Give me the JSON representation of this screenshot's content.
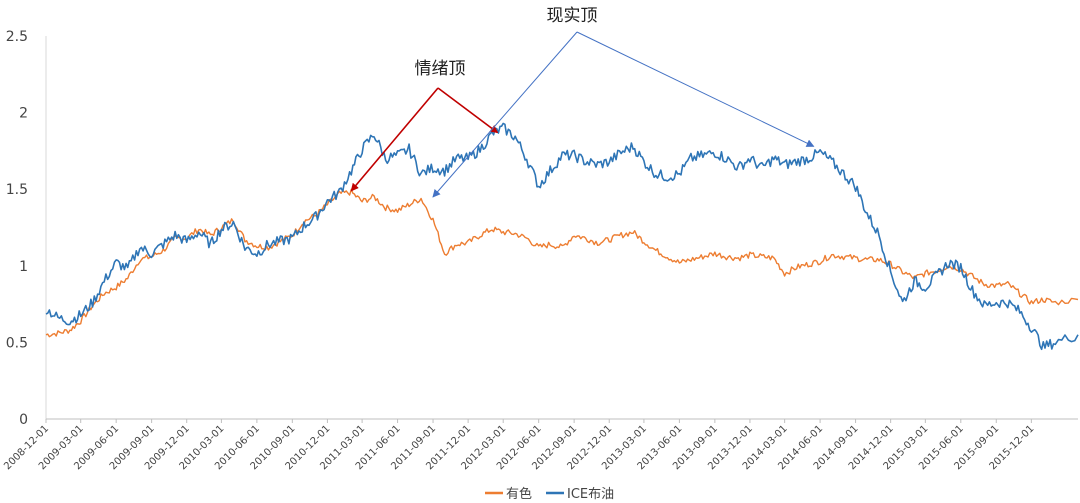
{
  "chart_data": {
    "type": "line",
    "title": "",
    "xlabel": "",
    "ylabel": "",
    "ylim": [
      0,
      2.5
    ],
    "yticks": [
      "0",
      "0.5",
      "1",
      "1.5",
      "2",
      "2.5"
    ],
    "x_start": "2008-12-01",
    "x_end": "2016-03-31",
    "grid": false,
    "legend_position": "bottom",
    "categories": [
      "2008-12-01",
      "2009-03-01",
      "2009-06-01",
      "2009-09-01",
      "2009-12-01",
      "2010-03-01",
      "2010-06-01",
      "2010-09-01",
      "2010-12-01",
      "2011-03-01",
      "2011-06-01",
      "2011-09-01",
      "2011-12-01",
      "2012-03-01",
      "2012-06-01",
      "2012-09-01",
      "2012-12-01",
      "2013-03-01",
      "2013-06-01",
      "2013-09-01",
      "2013-12-01",
      "2014-03-01",
      "2014-06-01",
      "2014-09-01",
      "2014-12-01",
      "2015-03-01",
      "2015-06-01",
      "2015-09-01",
      "2015-12-01"
    ],
    "series": [
      {
        "name": "有色",
        "color": "#ED7D31",
        "points": [
          [
            "2008-12-01",
            0.55
          ],
          [
            "2009-01-01",
            0.56
          ],
          [
            "2009-02-01",
            0.58
          ],
          [
            "2009-03-01",
            0.64
          ],
          [
            "2009-04-01",
            0.74
          ],
          [
            "2009-05-01",
            0.82
          ],
          [
            "2009-06-01",
            0.86
          ],
          [
            "2009-07-01",
            0.92
          ],
          [
            "2009-08-01",
            1.04
          ],
          [
            "2009-09-01",
            1.06
          ],
          [
            "2009-10-01",
            1.1
          ],
          [
            "2009-11-01",
            1.18
          ],
          [
            "2009-12-01",
            1.18
          ],
          [
            "2010-01-01",
            1.24
          ],
          [
            "2010-02-01",
            1.2
          ],
          [
            "2010-03-01",
            1.25
          ],
          [
            "2010-04-01",
            1.3
          ],
          [
            "2010-05-01",
            1.17
          ],
          [
            "2010-06-01",
            1.13
          ],
          [
            "2010-07-01",
            1.12
          ],
          [
            "2010-08-01",
            1.16
          ],
          [
            "2010-09-01",
            1.2
          ],
          [
            "2010-10-01",
            1.29
          ],
          [
            "2010-11-01",
            1.33
          ],
          [
            "2010-12-01",
            1.4
          ],
          [
            "2011-01-01",
            1.47
          ],
          [
            "2011-02-01",
            1.48
          ],
          [
            "2011-03-01",
            1.42
          ],
          [
            "2011-04-01",
            1.45
          ],
          [
            "2011-05-01",
            1.38
          ],
          [
            "2011-06-01",
            1.36
          ],
          [
            "2011-07-01",
            1.4
          ],
          [
            "2011-08-01",
            1.44
          ],
          [
            "2011-09-01",
            1.3
          ],
          [
            "2011-10-01",
            1.08
          ],
          [
            "2011-11-01",
            1.14
          ],
          [
            "2011-12-01",
            1.15
          ],
          [
            "2012-01-01",
            1.2
          ],
          [
            "2012-02-01",
            1.24
          ],
          [
            "2012-03-01",
            1.22
          ],
          [
            "2012-04-01",
            1.21
          ],
          [
            "2012-05-01",
            1.18
          ],
          [
            "2012-06-01",
            1.12
          ],
          [
            "2012-07-01",
            1.14
          ],
          [
            "2012-08-01",
            1.12
          ],
          [
            "2012-09-01",
            1.2
          ],
          [
            "2012-10-01",
            1.18
          ],
          [
            "2012-11-01",
            1.15
          ],
          [
            "2012-12-01",
            1.17
          ],
          [
            "2013-01-01",
            1.2
          ],
          [
            "2013-02-01",
            1.22
          ],
          [
            "2013-03-01",
            1.16
          ],
          [
            "2013-04-01",
            1.1
          ],
          [
            "2013-05-01",
            1.06
          ],
          [
            "2013-06-01",
            1.02
          ],
          [
            "2013-07-01",
            1.04
          ],
          [
            "2013-08-01",
            1.06
          ],
          [
            "2013-09-01",
            1.08
          ],
          [
            "2013-10-01",
            1.06
          ],
          [
            "2013-11-01",
            1.05
          ],
          [
            "2013-12-01",
            1.07
          ],
          [
            "2014-01-01",
            1.06
          ],
          [
            "2014-02-01",
            1.05
          ],
          [
            "2014-03-01",
            0.95
          ],
          [
            "2014-04-01",
            0.99
          ],
          [
            "2014-05-01",
            1.01
          ],
          [
            "2014-06-01",
            1.03
          ],
          [
            "2014-07-01",
            1.07
          ],
          [
            "2014-08-01",
            1.06
          ],
          [
            "2014-09-01",
            1.05
          ],
          [
            "2014-10-01",
            1.04
          ],
          [
            "2014-11-01",
            1.04
          ],
          [
            "2014-12-01",
            1.01
          ],
          [
            "2015-01-01",
            0.96
          ],
          [
            "2015-02-01",
            0.92
          ],
          [
            "2015-03-01",
            0.95
          ],
          [
            "2015-04-01",
            0.97
          ],
          [
            "2015-05-01",
            1.0
          ],
          [
            "2015-06-01",
            0.98
          ],
          [
            "2015-07-01",
            0.93
          ],
          [
            "2015-08-01",
            0.88
          ],
          [
            "2015-09-01",
            0.87
          ],
          [
            "2015-10-01",
            0.88
          ],
          [
            "2015-11-01",
            0.82
          ],
          [
            "2015-12-01",
            0.76
          ],
          [
            "2016-01-01",
            0.78
          ],
          [
            "2016-02-01",
            0.76
          ],
          [
            "2016-03-31",
            0.78
          ]
        ]
      },
      {
        "name": "ICE布油",
        "color": "#2E75B6",
        "points": [
          [
            "2008-12-01",
            0.72
          ],
          [
            "2009-01-01",
            0.66
          ],
          [
            "2009-02-01",
            0.64
          ],
          [
            "2009-03-01",
            0.68
          ],
          [
            "2009-04-01",
            0.76
          ],
          [
            "2009-05-01",
            0.9
          ],
          [
            "2009-06-01",
            1.02
          ],
          [
            "2009-07-01",
            0.98
          ],
          [
            "2009-08-01",
            1.12
          ],
          [
            "2009-09-01",
            1.08
          ],
          [
            "2009-10-01",
            1.14
          ],
          [
            "2009-11-01",
            1.2
          ],
          [
            "2009-12-01",
            1.16
          ],
          [
            "2010-01-01",
            1.22
          ],
          [
            "2010-02-01",
            1.14
          ],
          [
            "2010-03-01",
            1.24
          ],
          [
            "2010-04-01",
            1.28
          ],
          [
            "2010-05-01",
            1.12
          ],
          [
            "2010-06-01",
            1.08
          ],
          [
            "2010-07-01",
            1.14
          ],
          [
            "2010-08-01",
            1.16
          ],
          [
            "2010-09-01",
            1.18
          ],
          [
            "2010-10-01",
            1.26
          ],
          [
            "2010-11-01",
            1.32
          ],
          [
            "2010-12-01",
            1.42
          ],
          [
            "2011-01-01",
            1.48
          ],
          [
            "2011-02-01",
            1.62
          ],
          [
            "2011-03-01",
            1.76
          ],
          [
            "2011-04-01",
            1.86
          ],
          [
            "2011-05-01",
            1.7
          ],
          [
            "2011-06-01",
            1.72
          ],
          [
            "2011-07-01",
            1.76
          ],
          [
            "2011-08-01",
            1.6
          ],
          [
            "2011-09-01",
            1.64
          ],
          [
            "2011-10-01",
            1.62
          ],
          [
            "2011-11-01",
            1.7
          ],
          [
            "2011-12-01",
            1.7
          ],
          [
            "2012-01-01",
            1.76
          ],
          [
            "2012-02-01",
            1.86
          ],
          [
            "2012-03-01",
            1.9
          ],
          [
            "2012-04-01",
            1.84
          ],
          [
            "2012-05-01",
            1.7
          ],
          [
            "2012-06-01",
            1.52
          ],
          [
            "2012-07-01",
            1.62
          ],
          [
            "2012-08-01",
            1.72
          ],
          [
            "2012-09-01",
            1.72
          ],
          [
            "2012-10-01",
            1.68
          ],
          [
            "2012-11-01",
            1.66
          ],
          [
            "2012-12-01",
            1.68
          ],
          [
            "2013-01-01",
            1.74
          ],
          [
            "2013-02-01",
            1.78
          ],
          [
            "2013-03-01",
            1.68
          ],
          [
            "2013-04-01",
            1.6
          ],
          [
            "2013-05-01",
            1.58
          ],
          [
            "2013-06-01",
            1.6
          ],
          [
            "2013-07-01",
            1.7
          ],
          [
            "2013-08-01",
            1.72
          ],
          [
            "2013-09-01",
            1.74
          ],
          [
            "2013-10-01",
            1.7
          ],
          [
            "2013-11-01",
            1.64
          ],
          [
            "2013-12-01",
            1.7
          ],
          [
            "2014-01-01",
            1.64
          ],
          [
            "2014-02-01",
            1.7
          ],
          [
            "2014-03-01",
            1.66
          ],
          [
            "2014-04-01",
            1.68
          ],
          [
            "2014-05-01",
            1.7
          ],
          [
            "2014-06-01",
            1.74
          ],
          [
            "2014-07-01",
            1.68
          ],
          [
            "2014-08-01",
            1.6
          ],
          [
            "2014-09-01",
            1.52
          ],
          [
            "2014-10-01",
            1.34
          ],
          [
            "2014-11-01",
            1.2
          ],
          [
            "2014-12-01",
            0.96
          ],
          [
            "2015-01-01",
            0.76
          ],
          [
            "2015-02-01",
            0.9
          ],
          [
            "2015-03-01",
            0.86
          ],
          [
            "2015-04-01",
            0.94
          ],
          [
            "2015-05-01",
            1.02
          ],
          [
            "2015-06-01",
            0.99
          ],
          [
            "2015-07-01",
            0.84
          ],
          [
            "2015-08-01",
            0.74
          ],
          [
            "2015-09-01",
            0.76
          ],
          [
            "2015-10-01",
            0.76
          ],
          [
            "2015-11-01",
            0.7
          ],
          [
            "2015-12-01",
            0.6
          ],
          [
            "2016-01-01",
            0.47
          ],
          [
            "2016-02-01",
            0.5
          ],
          [
            "2016-03-31",
            0.55
          ]
        ]
      }
    ],
    "annotations": [
      {
        "text": "情绪顶",
        "color": "#C00000",
        "targets": [
          [
            "2011-02-01",
            1.49
          ],
          [
            "2012-02-15",
            1.87
          ]
        ]
      },
      {
        "text": "现实顶",
        "color": "#4472C4",
        "targets": [
          [
            "2011-09-01",
            1.45
          ],
          [
            "2014-05-15",
            1.78
          ]
        ]
      }
    ]
  }
}
